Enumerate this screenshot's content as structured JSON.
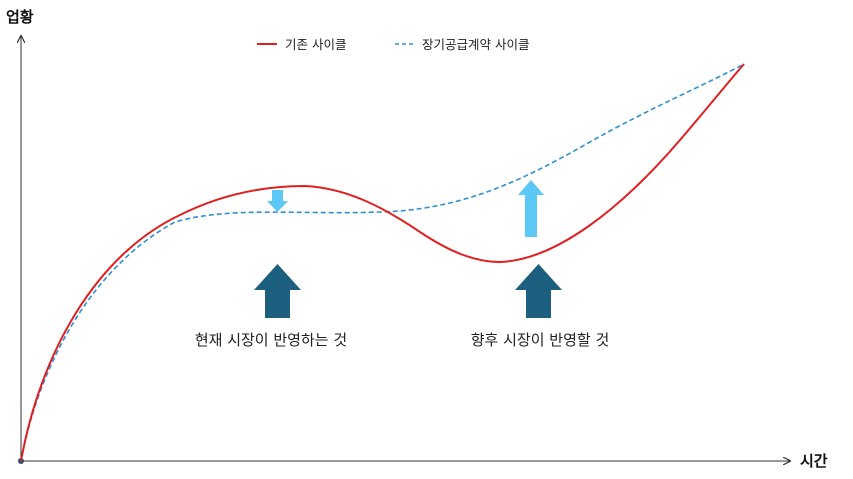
{
  "axes": {
    "y_label": "업황",
    "x_label": "시간"
  },
  "legend": {
    "existing_cycle": "기존 사이클",
    "contract_cycle": "장기공급계약 사이클"
  },
  "annotations": {
    "current_market": "현재 시장이 반영하는 것",
    "future_market": "향후 시장이 반영할 것"
  },
  "colors": {
    "existing_cycle": "#e02020",
    "contract_cycle": "#2f8fd0",
    "dark_arrow": "#1c5f7e",
    "light_arrow": "#5cc8f5",
    "axis": "#333333"
  }
}
